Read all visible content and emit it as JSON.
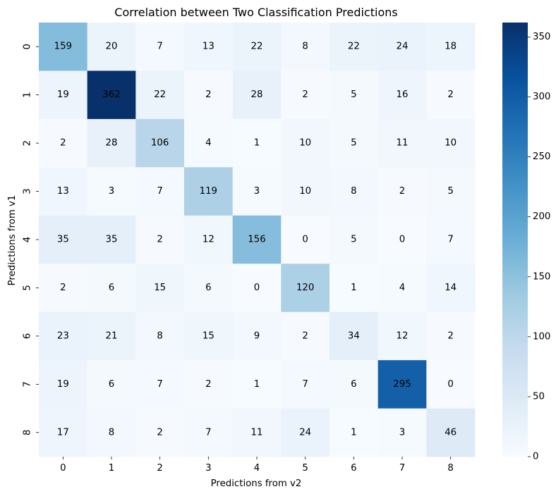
{
  "chart_data": {
    "type": "heatmap",
    "title": "Correlation between Two Classification Predictions",
    "xlabel": "Predictions from v2",
    "ylabel": "Predictions from v1",
    "x_categories": [
      "0",
      "1",
      "2",
      "3",
      "4",
      "5",
      "6",
      "7",
      "8"
    ],
    "y_categories": [
      "0",
      "1",
      "2",
      "3",
      "4",
      "5",
      "6",
      "7",
      "8"
    ],
    "values": [
      [
        159,
        20,
        7,
        13,
        22,
        8,
        22,
        24,
        18
      ],
      [
        19,
        362,
        22,
        2,
        28,
        2,
        5,
        16,
        2
      ],
      [
        2,
        28,
        106,
        4,
        1,
        10,
        5,
        11,
        10
      ],
      [
        13,
        3,
        7,
        119,
        3,
        10,
        8,
        2,
        5
      ],
      [
        35,
        35,
        2,
        12,
        156,
        0,
        5,
        0,
        7
      ],
      [
        2,
        6,
        15,
        6,
        0,
        120,
        1,
        4,
        14
      ],
      [
        23,
        21,
        8,
        15,
        9,
        2,
        34,
        12,
        2
      ],
      [
        19,
        6,
        7,
        2,
        1,
        7,
        6,
        295,
        0
      ],
      [
        17,
        8,
        2,
        7,
        11,
        24,
        1,
        3,
        46
      ]
    ],
    "colorbar": {
      "colormap": "Blues",
      "vmin": 0,
      "vmax": 362,
      "ticks": [
        0,
        50,
        100,
        150,
        200,
        250,
        300,
        350
      ]
    },
    "annotations": "cell values",
    "grid": false,
    "legend": "none"
  }
}
